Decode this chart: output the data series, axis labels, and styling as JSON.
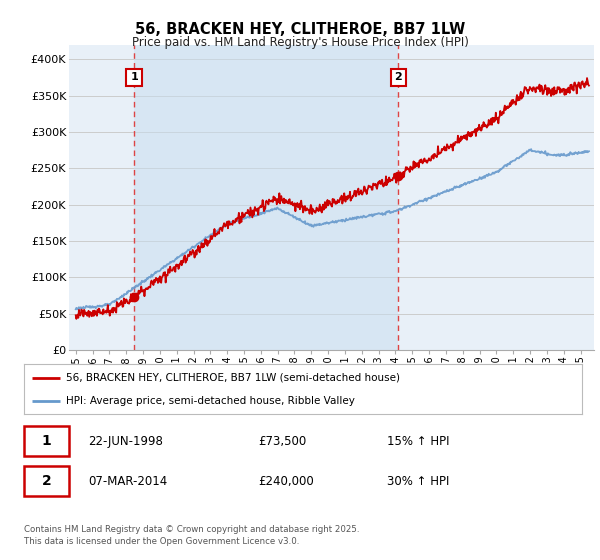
{
  "title": "56, BRACKEN HEY, CLITHEROE, BB7 1LW",
  "subtitle": "Price paid vs. HM Land Registry's House Price Index (HPI)",
  "sale1_date": "22-JUN-1998",
  "sale1_price": 73500,
  "sale1_label": "1",
  "sale1_hpi_note": "15% ↑ HPI",
  "sale2_date": "07-MAR-2014",
  "sale2_price": 240000,
  "sale2_label": "2",
  "sale2_hpi_note": "30% ↑ HPI",
  "legend_line1": "56, BRACKEN HEY, CLITHEROE, BB7 1LW (semi-detached house)",
  "legend_line2": "HPI: Average price, semi-detached house, Ribble Valley",
  "footer": "Contains HM Land Registry data © Crown copyright and database right 2025.\nThis data is licensed under the Open Government Licence v3.0.",
  "line_red": "#cc0000",
  "line_blue": "#6699cc",
  "fill_color": "#ddeeff",
  "vline_color": "#dd4444",
  "background_color": "#ffffff",
  "chart_bg": "#e8f0f8",
  "grid_color": "#cccccc",
  "ylim": [
    0,
    420000
  ],
  "yticks": [
    0,
    50000,
    100000,
    150000,
    200000,
    250000,
    300000,
    350000,
    400000
  ],
  "ytick_labels": [
    "£0",
    "£50K",
    "£100K",
    "£150K",
    "£200K",
    "£250K",
    "£300K",
    "£350K",
    "£400K"
  ],
  "sale1_x": 1998.47,
  "sale2_x": 2014.18,
  "xmin": 1995,
  "xmax": 2025
}
